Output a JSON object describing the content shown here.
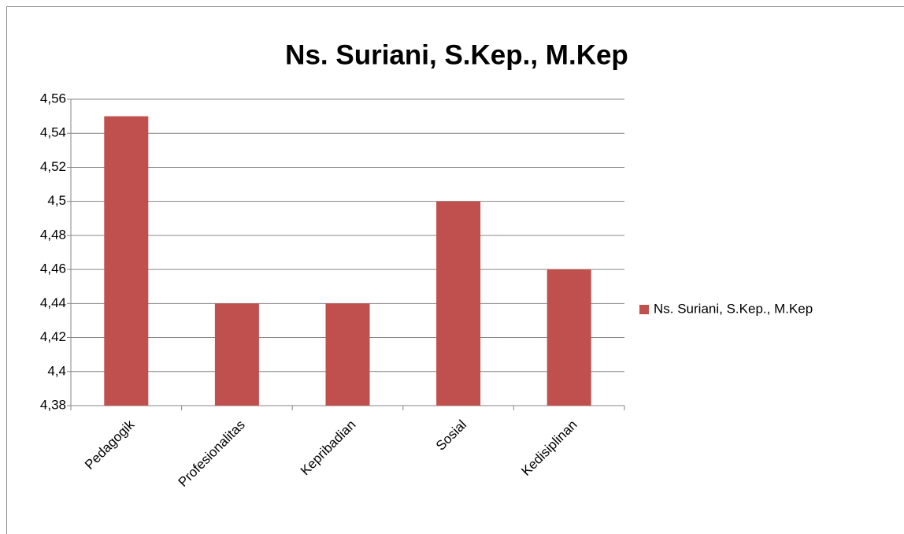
{
  "chart_data": {
    "type": "bar",
    "title": "Ns. Suriani, S.Kep., M.Kep",
    "categories": [
      "Pedagogik",
      "Profesionalitas",
      "Kepribadian",
      "Sosial",
      "Kedisiplinan"
    ],
    "series": [
      {
        "name": "Ns. Suriani, S.Kep., M.Kep",
        "color": "#c0504d",
        "values": [
          4.55,
          4.44,
          4.44,
          4.5,
          4.46
        ]
      }
    ],
    "ylim": [
      4.38,
      4.56
    ],
    "yticks": [
      {
        "value": 4.38,
        "label": "4,38"
      },
      {
        "value": 4.4,
        "label": "4,4"
      },
      {
        "value": 4.42,
        "label": "4,42"
      },
      {
        "value": 4.44,
        "label": "4,44"
      },
      {
        "value": 4.46,
        "label": "4,46"
      },
      {
        "value": 4.48,
        "label": "4,48"
      },
      {
        "value": 4.5,
        "label": "4,5"
      },
      {
        "value": 4.52,
        "label": "4,52"
      },
      {
        "value": 4.54,
        "label": "4,54"
      },
      {
        "value": 4.56,
        "label": "4,56"
      }
    ],
    "grid": true,
    "legend": "right"
  }
}
